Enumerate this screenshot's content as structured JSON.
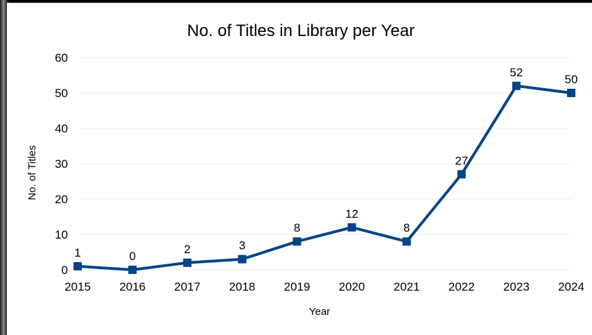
{
  "chart_data": {
    "type": "line",
    "title": "No. of Titles in Library per Year",
    "xlabel": "Year",
    "ylabel": "No. of Titles",
    "categories": [
      "2015",
      "2016",
      "2017",
      "2018",
      "2019",
      "2020",
      "2021",
      "2022",
      "2023",
      "2024"
    ],
    "values": [
      1,
      0,
      2,
      3,
      8,
      12,
      8,
      27,
      52,
      50
    ],
    "ylim": [
      0,
      60
    ],
    "yticks": [
      "0",
      "10",
      "20",
      "30",
      "40",
      "50",
      "60"
    ],
    "grid": true,
    "legend": "none",
    "data_labels": true,
    "series_color": "#004586",
    "grid_color": "#eeeeee"
  }
}
